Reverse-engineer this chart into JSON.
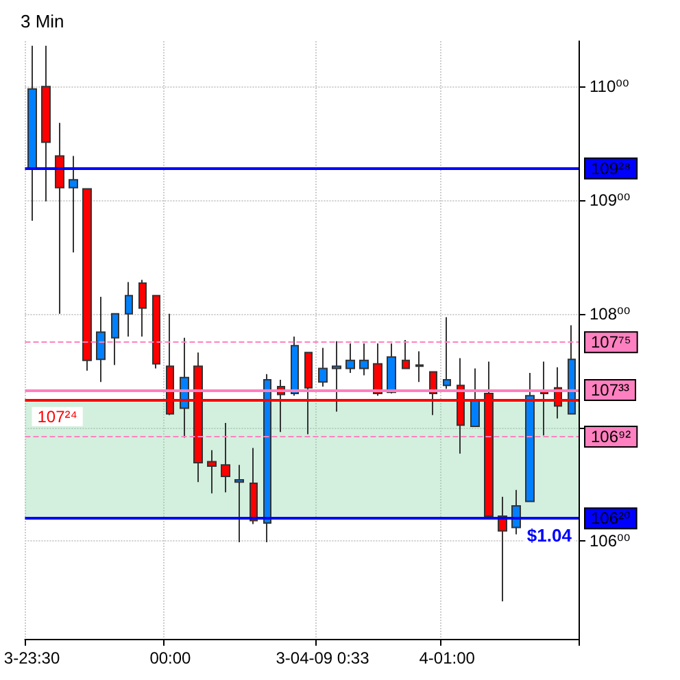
{
  "chart_data": {
    "type": "candlestick",
    "title": "3 Min",
    "categories": [
      "3-23:30",
      null,
      null,
      null,
      null,
      null,
      null,
      null,
      null,
      null,
      "00:00",
      null,
      null,
      null,
      null,
      null,
      null,
      null,
      null,
      null,
      null,
      "3-04-09 0:33",
      null,
      null,
      null,
      null,
      null,
      null,
      null,
      null,
      "4-01:00",
      null,
      null,
      null,
      null,
      null,
      null,
      null,
      null,
      null
    ],
    "ohlc": [
      [
        109.28,
        110.36,
        108.82,
        109.98
      ],
      [
        110.0,
        110.36,
        108.99,
        109.51
      ],
      [
        109.39,
        109.68,
        108.0,
        109.11
      ],
      [
        109.11,
        109.39,
        108.54,
        109.18
      ],
      [
        109.1,
        109.1,
        107.5,
        107.59
      ],
      [
        107.6,
        108.15,
        107.4,
        107.84
      ],
      [
        107.79,
        108.0,
        107.55,
        108.0
      ],
      [
        108.0,
        108.28,
        107.8,
        108.16
      ],
      [
        108.27,
        108.3,
        107.8,
        108.05
      ],
      [
        108.16,
        108.16,
        107.52,
        107.56
      ],
      [
        107.54,
        108.0,
        107.11,
        107.12
      ],
      [
        107.17,
        107.79,
        106.91,
        107.44
      ],
      [
        107.54,
        107.66,
        106.52,
        106.69
      ],
      [
        106.7,
        106.8,
        106.42,
        106.66
      ],
      [
        106.67,
        107.04,
        106.43,
        106.57
      ],
      [
        106.52,
        106.67,
        105.99,
        106.54
      ],
      [
        106.51,
        106.82,
        106.15,
        106.18
      ],
      [
        106.16,
        107.47,
        105.99,
        107.42
      ],
      [
        107.36,
        107.42,
        106.96,
        107.29
      ],
      [
        107.3,
        107.8,
        107.28,
        107.72
      ],
      [
        107.66,
        107.66,
        106.94,
        107.35
      ],
      [
        107.4,
        107.7,
        107.36,
        107.52
      ],
      [
        107.52,
        107.76,
        107.14,
        107.54
      ],
      [
        107.52,
        107.74,
        107.48,
        107.59
      ],
      [
        107.52,
        107.74,
        107.46,
        107.59
      ],
      [
        107.56,
        107.74,
        107.28,
        107.3
      ],
      [
        107.31,
        107.74,
        107.3,
        107.62
      ],
      [
        107.59,
        107.77,
        107.52,
        107.52
      ],
      [
        107.55,
        107.67,
        107.4,
        107.54
      ],
      [
        107.49,
        107.49,
        107.11,
        107.3
      ],
      [
        107.37,
        107.97,
        107.34,
        107.42
      ],
      [
        107.37,
        107.61,
        106.77,
        107.02
      ],
      [
        107.01,
        107.52,
        107.01,
        107.24
      ],
      [
        107.3,
        107.58,
        106.22,
        106.22
      ],
      [
        106.22,
        106.39,
        105.47,
        106.09
      ],
      [
        106.12,
        106.45,
        106.06,
        106.31
      ],
      [
        106.35,
        107.48,
        106.35,
        107.28
      ],
      [
        107.33,
        107.58,
        106.93,
        107.3
      ],
      [
        107.35,
        107.53,
        107.08,
        107.19
      ],
      [
        107.12,
        107.9,
        107.12,
        107.6
      ]
    ],
    "colors": [
      "#0080ff",
      "#ff0000",
      "#ff0000",
      "#0080ff",
      "#ff0000",
      "#0080ff",
      "#0080ff",
      "#0080ff",
      "#ff0000",
      "#ff0000",
      "#ff0000",
      "#0080ff",
      "#ff0000",
      "#ff0000",
      "#ff0000",
      "#0080ff",
      "#ff0000",
      "#0080ff",
      "#ff0000",
      "#0080ff",
      "#ff0000",
      "#0080ff",
      "#0080ff",
      "#0080ff",
      "#0080ff",
      "#ff0000",
      "#0080ff",
      "#ff0000",
      "#ff0000",
      "#ff0000",
      "#0080ff",
      "#ff0000",
      "#0080ff",
      "#ff0000",
      "#ff0000",
      "#0080ff",
      "#0080ff",
      "#ff0000",
      "#ff0000",
      "#0080ff"
    ],
    "ylim": [
      105.14,
      110.4
    ],
    "yticks": [
      {
        "value": 106,
        "label": "106⁰⁰"
      },
      {
        "value": 107,
        "label": null
      },
      {
        "value": 108,
        "label": "108⁰⁰"
      },
      {
        "value": 109,
        "label": "109⁰⁰"
      },
      {
        "value": 110,
        "label": "110⁰⁰"
      }
    ],
    "ref_lines": [
      {
        "axis": "y",
        "value": 109.28,
        "label": "109²⁸",
        "color": "#0000ff",
        "line_style": "solid"
      },
      {
        "axis": "y",
        "value": 107.75,
        "label": "107⁷⁵",
        "color": "#ff80c0",
        "line_style": "dashed"
      },
      {
        "axis": "y",
        "value": 107.33,
        "label": "107³³",
        "color": "#ff80c0",
        "line_style": "solid"
      },
      {
        "axis": "y",
        "value": 106.92,
        "label": "106⁹²",
        "color": "#ff80c0",
        "line_style": "dashed"
      },
      {
        "axis": "y",
        "value": 107.24,
        "label": "107²⁴",
        "color": "#ff0000",
        "line_style": "solid"
      },
      {
        "axis": "y",
        "value": 106.2,
        "label": "106²⁰",
        "color": "#0000ff",
        "line_style": "solid"
      }
    ],
    "bands": [
      {
        "axis": "y",
        "from": 106.2,
        "to": 107.24,
        "color": "#80d0a0"
      }
    ],
    "annotations": [
      {
        "text": "$1.04",
        "y": 106.2
      }
    ],
    "grid": true
  }
}
